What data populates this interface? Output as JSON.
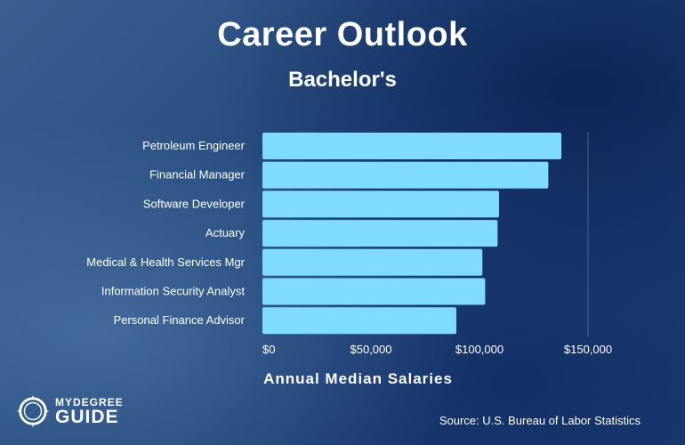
{
  "header": {
    "title": "Career Outlook",
    "subtitle": "Bachelor's"
  },
  "chart_data": {
    "type": "bar",
    "orientation": "horizontal",
    "categories": [
      "Petroleum Engineer",
      "Financial Manager",
      "Software Developer",
      "Actuary",
      "Medical & Health Services Mgr",
      "Information Security Analyst",
      "Personal Finance Advisor"
    ],
    "values": [
      137720,
      131710,
      109020,
      108350,
      101340,
      102600,
      89330
    ],
    "xlabel": "Annual Median Salaries",
    "ylabel": "",
    "xlim": [
      0,
      150000
    ],
    "x_ticks": [
      "$0",
      "$50,000",
      "$100,000",
      "$150,000"
    ],
    "x_tick_values": [
      0,
      50000,
      100000,
      150000
    ],
    "grid": "vertical line at $150,000 only",
    "bar_color": "#80dcff"
  },
  "footer": {
    "source": "Source: U.S. Bureau of Labor Statistics",
    "logo_top": "MYDEGREE",
    "logo_bottom": "GUIDE"
  }
}
